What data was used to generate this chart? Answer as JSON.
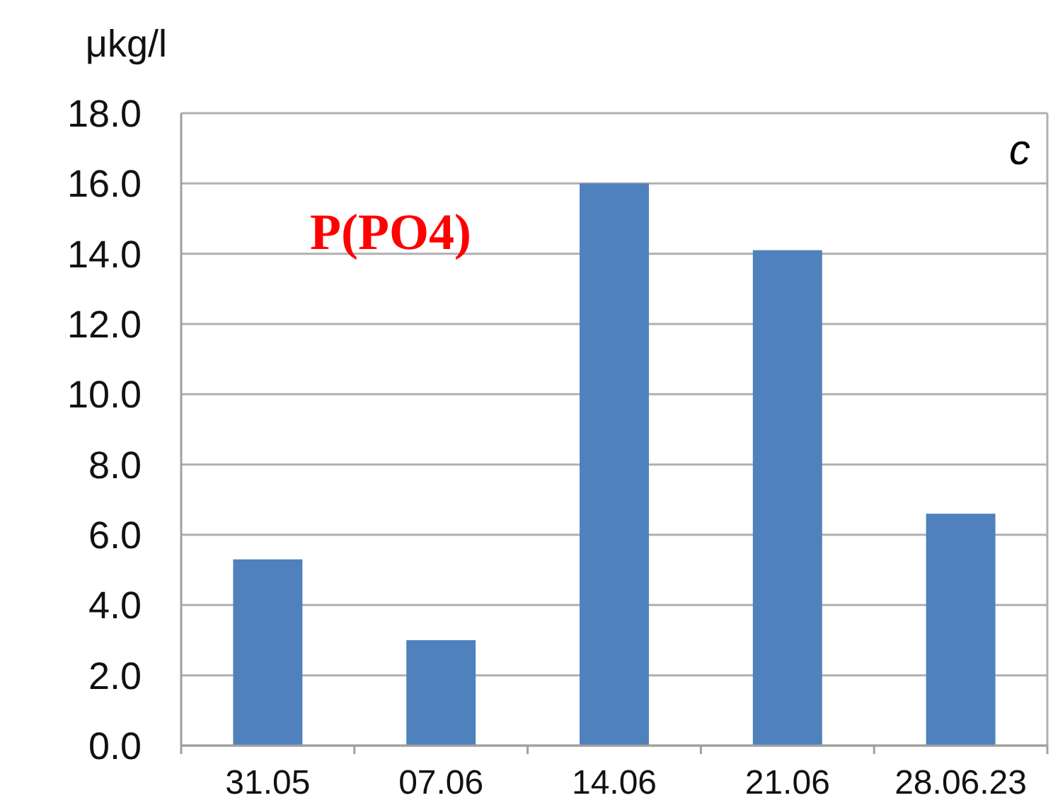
{
  "chart_data": {
    "type": "bar",
    "ylabel": "μkg/l",
    "categories": [
      "31.05",
      "07.06",
      "14.06",
      "21.06",
      "28.06.23"
    ],
    "values": [
      5.3,
      3.0,
      16.0,
      14.1,
      6.6
    ],
    "color": "#4f81bd",
    "ylim": [
      0,
      18
    ],
    "yticks": [
      {
        "value": 0,
        "label": "0.0"
      },
      {
        "value": 2,
        "label": "2.0"
      },
      {
        "value": 4,
        "label": "4.0"
      },
      {
        "value": 6,
        "label": "6.0"
      },
      {
        "value": 8,
        "label": "8.0"
      },
      {
        "value": 10,
        "label": "10.0"
      },
      {
        "value": 12,
        "label": "12.0"
      },
      {
        "value": 14,
        "label": "14.0"
      },
      {
        "value": 16,
        "label": "16.0"
      },
      {
        "value": 18,
        "label": "18.0"
      }
    ],
    "grid": "y",
    "annotations": [
      "c",
      "P(PO4)"
    ]
  }
}
